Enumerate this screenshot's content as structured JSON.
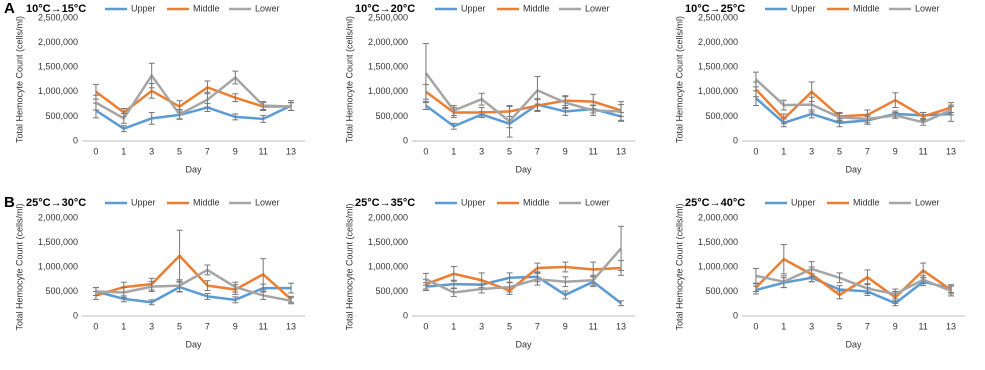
{
  "panels": [
    "A",
    "B"
  ],
  "chart_data": [
    {
      "type": "line",
      "title": "10°C→15°C",
      "x_label": "Day",
      "y_label": "Total Hemocyte Count  (cells/ml)",
      "categories": [
        "0",
        "1",
        "3",
        "5",
        "7",
        "9",
        "11",
        "13"
      ],
      "ylim": [
        0,
        2500000
      ],
      "yticks": [
        0,
        {
          "value": 500000,
          "label": "500,000"
        },
        {
          "value": 1000000,
          "label": "1,000,000"
        },
        {
          "value": 1500000,
          "label": "1,500,000"
        },
        {
          "value": 2000000,
          "label": "2,000,000"
        },
        {
          "value": 2500000,
          "label": "2,500,000"
        }
      ],
      "grid": false,
      "series": [
        {
          "name": "Upper",
          "color": "#5b9bd5",
          "values": [
            620000,
            250000,
            460000,
            530000,
            680000,
            490000,
            450000,
            720000
          ],
          "errors": [
            150000,
            60000,
            120000,
            80000,
            80000,
            60000,
            70000,
            100000
          ]
        },
        {
          "name": "Middle",
          "color": "#ed7d31",
          "values": [
            1000000,
            580000,
            1020000,
            700000,
            1090000,
            880000,
            700000,
            700000
          ],
          "errors": [
            150000,
            80000,
            150000,
            120000,
            130000,
            80000,
            80000,
            80000
          ]
        },
        {
          "name": "Lower",
          "color": "#a5a5a5",
          "values": [
            780000,
            460000,
            1330000,
            540000,
            840000,
            1290000,
            720000,
            700000
          ],
          "errors": [
            150000,
            100000,
            250000,
            100000,
            150000,
            130000,
            80000,
            80000
          ]
        }
      ]
    },
    {
      "type": "line",
      "title": "10°C→20°C",
      "x_label": "Day",
      "y_label": "Total Hemocyte Count  (cells/ml)",
      "categories": [
        "0",
        "1",
        "3",
        "5",
        "7",
        "9",
        "11",
        "13"
      ],
      "ylim": [
        0,
        2500000
      ],
      "yticks": [
        0,
        {
          "value": 500000,
          "label": "500,000"
        },
        {
          "value": 1000000,
          "label": "1,000,000"
        },
        {
          "value": 1500000,
          "label": "1,500,000"
        },
        {
          "value": 2000000,
          "label": "2,000,000"
        },
        {
          "value": 2500000,
          "label": "2,500,000"
        }
      ],
      "grid": false,
      "series": [
        {
          "name": "Upper",
          "color": "#5b9bd5",
          "values": [
            720000,
            300000,
            540000,
            350000,
            740000,
            600000,
            650000,
            500000
          ],
          "errors": [
            80000,
            60000,
            60000,
            80000,
            120000,
            80000,
            80000,
            80000
          ]
        },
        {
          "name": "Middle",
          "color": "#ed7d31",
          "values": [
            1000000,
            580000,
            580000,
            600000,
            720000,
            820000,
            800000,
            620000
          ],
          "errors": [
            150000,
            100000,
            100000,
            100000,
            120000,
            100000,
            150000,
            120000
          ]
        },
        {
          "name": "Lower",
          "color": "#a5a5a5",
          "values": [
            1380000,
            620000,
            850000,
            400000,
            1030000,
            780000,
            620000,
            600000
          ],
          "errors": [
            600000,
            100000,
            120000,
            320000,
            280000,
            120000,
            100000,
            200000
          ]
        }
      ]
    },
    {
      "type": "line",
      "title": "10°C→25°C",
      "x_label": "Day",
      "y_label": "Total Hemocyte Count  (cells/ml)",
      "categories": [
        "0",
        "1",
        "3",
        "5",
        "7",
        "9",
        "11",
        "13"
      ],
      "ylim": [
        0,
        2500000
      ],
      "yticks": [
        0,
        {
          "value": 500000,
          "label": "500,000"
        },
        {
          "value": 1000000,
          "label": "1,000,000"
        },
        {
          "value": 1500000,
          "label": "1,500,000"
        },
        {
          "value": 2000000,
          "label": "2,000,000"
        },
        {
          "value": 2500000,
          "label": "2,500,000"
        }
      ],
      "grid": false,
      "series": [
        {
          "name": "Upper",
          "color": "#5b9bd5",
          "values": [
            870000,
            370000,
            550000,
            370000,
            420000,
            550000,
            520000,
            550000
          ],
          "errors": [
            150000,
            80000,
            80000,
            80000,
            80000,
            60000,
            60000,
            150000
          ]
        },
        {
          "name": "Middle",
          "color": "#ed7d31",
          "values": [
            1050000,
            450000,
            1000000,
            500000,
            530000,
            830000,
            500000,
            680000
          ],
          "errors": [
            150000,
            100000,
            200000,
            80000,
            100000,
            150000,
            80000,
            100000
          ]
        },
        {
          "name": "Lower",
          "color": "#a5a5a5",
          "values": [
            1250000,
            730000,
            740000,
            480000,
            450000,
            520000,
            380000,
            630000
          ],
          "errors": [
            150000,
            100000,
            150000,
            80000,
            80000,
            60000,
            60000,
            100000
          ]
        }
      ]
    },
    {
      "type": "line",
      "title": "25°C→30°C",
      "x_label": "Day",
      "y_label": "Total Hemocyte Count  (cells/ml)",
      "categories": [
        "0",
        "1",
        "3",
        "5",
        "7",
        "9",
        "11",
        "13"
      ],
      "ylim": [
        0,
        2000000
      ],
      "yticks": [
        0,
        {
          "value": 500000,
          "label": "500,000"
        },
        {
          "value": 1000000,
          "label": "1,000,000"
        },
        {
          "value": 1500000,
          "label": "1,500,000"
        },
        {
          "value": 2000000,
          "label": "2,000,000"
        }
      ],
      "grid": false,
      "series": [
        {
          "name": "Upper",
          "color": "#5b9bd5",
          "values": [
            500000,
            350000,
            280000,
            590000,
            400000,
            330000,
            570000,
            570000
          ],
          "errors": [
            80000,
            60000,
            50000,
            100000,
            60000,
            60000,
            80000,
            100000
          ]
        },
        {
          "name": "Middle",
          "color": "#ed7d31",
          "values": [
            420000,
            590000,
            650000,
            1230000,
            620000,
            540000,
            850000,
            340000
          ],
          "errors": [
            80000,
            100000,
            120000,
            520000,
            100000,
            100000,
            320000,
            60000
          ]
        },
        {
          "name": "Lower",
          "color": "#a5a5a5",
          "values": [
            500000,
            480000,
            600000,
            620000,
            940000,
            590000,
            420000,
            310000
          ],
          "errors": [
            80000,
            100000,
            100000,
            120000,
            100000,
            100000,
            80000,
            60000
          ]
        }
      ]
    },
    {
      "type": "line",
      "title": "25°C→35°C",
      "x_label": "Day",
      "y_label": "Total Hemocyte Count  (cells/ml)",
      "categories": [
        "0",
        "1",
        "3",
        "5",
        "7",
        "9",
        "11",
        "13"
      ],
      "ylim": [
        0,
        2000000
      ],
      "yticks": [
        0,
        {
          "value": 500000,
          "label": "500,000"
        },
        {
          "value": 1000000,
          "label": "1,000,000"
        },
        {
          "value": 1500000,
          "label": "1,500,000"
        },
        {
          "value": 2000000,
          "label": "2,000,000"
        }
      ],
      "grid": false,
      "series": [
        {
          "name": "Upper",
          "color": "#5b9bd5",
          "values": [
            600000,
            650000,
            640000,
            780000,
            800000,
            430000,
            700000,
            260000
          ],
          "errors": [
            80000,
            80000,
            80000,
            100000,
            100000,
            80000,
            100000,
            50000
          ]
        },
        {
          "name": "Middle",
          "color": "#ed7d31",
          "values": [
            650000,
            860000,
            730000,
            520000,
            980000,
            1000000,
            950000,
            980000
          ],
          "errors": [
            100000,
            150000,
            150000,
            80000,
            100000,
            100000,
            150000,
            150000
          ]
        },
        {
          "name": "Lower",
          "color": "#a5a5a5",
          "values": [
            750000,
            480000,
            550000,
            590000,
            750000,
            700000,
            730000,
            1380000
          ],
          "errors": [
            120000,
            80000,
            80000,
            100000,
            120000,
            100000,
            100000,
            450000
          ]
        }
      ]
    },
    {
      "type": "line",
      "title": "25°C→40°C",
      "x_label": "Day",
      "y_label": "Total Hemocyte Count  (cells/ml)",
      "categories": [
        "0",
        "1",
        "3",
        "5",
        "7",
        "9",
        "11",
        "13"
      ],
      "ylim": [
        0,
        2000000
      ],
      "yticks": [
        0,
        {
          "value": 500000,
          "label": "500,000"
        },
        {
          "value": 1000000,
          "label": "1,000,000"
        },
        {
          "value": 1500000,
          "label": "1,500,000"
        },
        {
          "value": 2000000,
          "label": "2,000,000"
        }
      ],
      "grid": false,
      "series": [
        {
          "name": "Upper",
          "color": "#5b9bd5",
          "values": [
            530000,
            680000,
            780000,
            540000,
            500000,
            260000,
            700000,
            560000
          ],
          "errors": [
            80000,
            100000,
            80000,
            80000,
            80000,
            50000,
            80000,
            80000
          ]
        },
        {
          "name": "Middle",
          "color": "#ed7d31",
          "values": [
            580000,
            1160000,
            850000,
            430000,
            790000,
            380000,
            930000,
            530000
          ],
          "errors": [
            80000,
            300000,
            150000,
            80000,
            150000,
            120000,
            150000,
            80000
          ]
        },
        {
          "name": "Lower",
          "color": "#a5a5a5",
          "values": [
            820000,
            700000,
            960000,
            780000,
            560000,
            450000,
            740000,
            510000
          ],
          "errors": [
            150000,
            120000,
            150000,
            100000,
            100000,
            100000,
            80000,
            100000
          ]
        }
      ]
    }
  ]
}
